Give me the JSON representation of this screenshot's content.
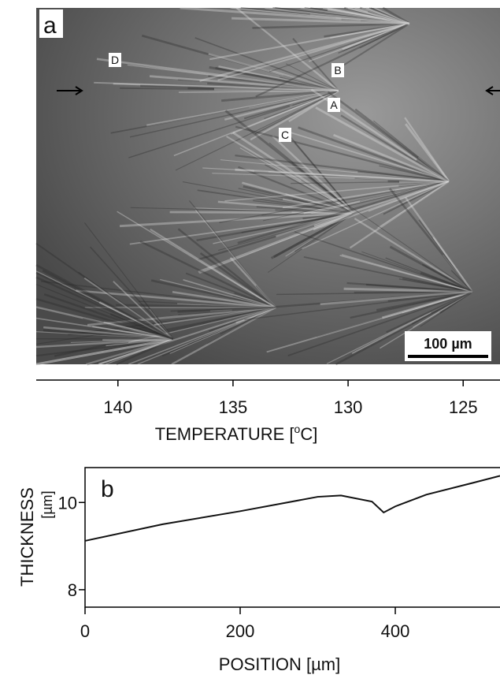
{
  "panel_a": {
    "label": "a",
    "markers": [
      "D",
      "B",
      "A",
      "C"
    ],
    "scale_bar": "100 µm"
  },
  "chart_data": [
    {
      "type": "axis",
      "xlabel": {
        "text": "TEMPERATURE [",
        "sup": "o",
        "after": "C]"
      },
      "xlim": [
        143.55,
        123.4
      ],
      "xticks": [
        140,
        135,
        130,
        125
      ]
    },
    {
      "type": "line",
      "label": "b",
      "ylabel": [
        "THICKNESS",
        "[µm]"
      ],
      "xlabel": "POSITION [µm]",
      "x": [
        0,
        100,
        200,
        300,
        330,
        370,
        385,
        400,
        440,
        500,
        535
      ],
      "values": [
        9.12,
        9.5,
        9.8,
        10.13,
        10.16,
        10.02,
        9.77,
        9.91,
        10.18,
        10.45,
        10.61
      ],
      "color": "#111111",
      "xlim": [
        0,
        535
      ],
      "ylim": [
        7.6,
        10.8
      ],
      "xticks": [
        0,
        200,
        400
      ],
      "yticks": [
        8,
        10
      ]
    }
  ]
}
